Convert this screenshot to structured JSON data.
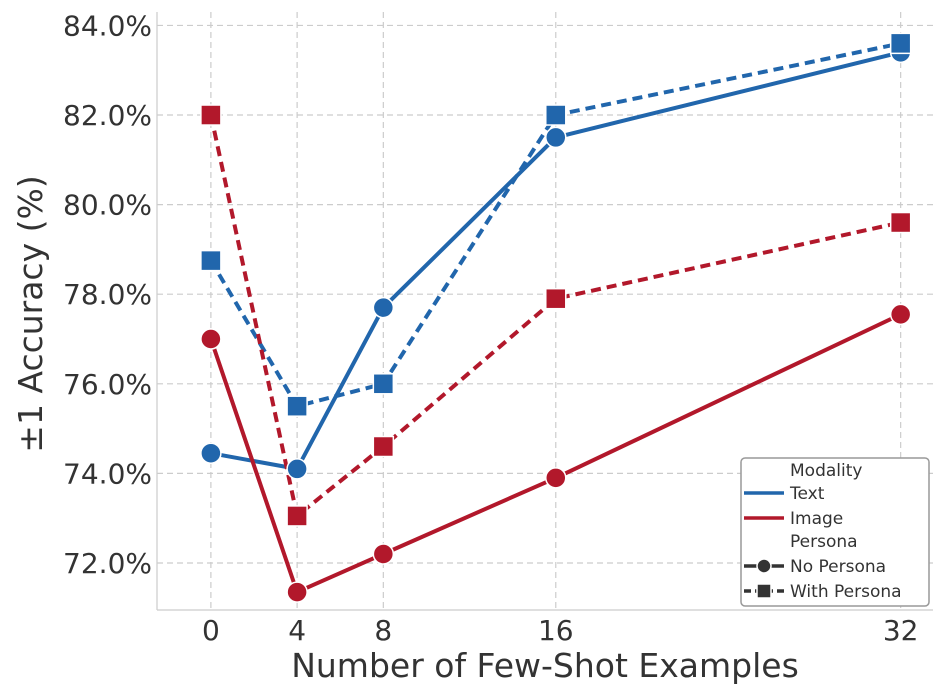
{
  "chart_data": {
    "type": "line",
    "title": "",
    "xlabel": "Number of Few-Shot Examples",
    "ylabel": "±1 Accuracy (%)",
    "x": [
      0,
      4,
      8,
      16,
      32
    ],
    "xticks": [
      "0",
      "4",
      "8",
      "16",
      "32"
    ],
    "xlim": [
      -2.5,
      33.5
    ],
    "ylim": [
      70.95,
      84.3
    ],
    "yticks": [
      72,
      74,
      76,
      78,
      80,
      82,
      84
    ],
    "ytick_labels": [
      "72.0%",
      "74.0%",
      "76.0%",
      "78.0%",
      "80.0%",
      "82.0%",
      "84.0%"
    ],
    "grid": true,
    "colors": {
      "text": "#2166ac",
      "image": "#b2182b",
      "legend_dark": "#333333"
    },
    "series": [
      {
        "name": "Text / No Persona",
        "modality": "Text",
        "persona": "No Persona",
        "values": [
          74.45,
          74.1,
          77.7,
          81.5,
          83.4
        ]
      },
      {
        "name": "Text / With Persona",
        "modality": "Text",
        "persona": "With Persona",
        "values": [
          78.75,
          75.5,
          76.0,
          82.0,
          83.6
        ]
      },
      {
        "name": "Image / No Persona",
        "modality": "Image",
        "persona": "No Persona",
        "values": [
          77.0,
          71.35,
          72.2,
          73.9,
          77.55
        ]
      },
      {
        "name": "Image / With Persona",
        "modality": "Image",
        "persona": "With Persona",
        "values": [
          82.0,
          73.05,
          74.6,
          77.9,
          79.6
        ]
      }
    ],
    "legend": {
      "position": "bottom-right",
      "modality_title": "Modality",
      "modality_items": [
        "Text",
        "Image"
      ],
      "persona_title": "Persona",
      "persona_items": [
        "No Persona",
        "With Persona"
      ]
    }
  }
}
